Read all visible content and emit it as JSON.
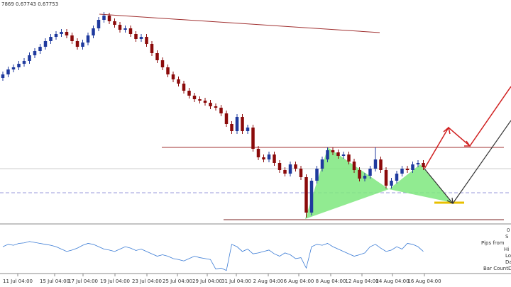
{
  "chart_data": {
    "type": "candlestick",
    "header": "7869 0.67743 0.67753",
    "ylim": [
      0.67,
      0.7015
    ],
    "bull_color": "#1f3a9e",
    "bear_color": "#8b0a0a",
    "open": [
      0.6905,
      0.691,
      0.6917,
      0.692,
      0.6925,
      0.6929,
      0.6937,
      0.6943,
      0.6949,
      0.6957,
      0.6963,
      0.6967,
      0.697,
      0.6965,
      0.6957,
      0.6949,
      0.6955,
      0.6965,
      0.6975,
      0.6987,
      0.6993,
      0.6985,
      0.698,
      0.6973,
      0.6975,
      0.6967,
      0.696,
      0.6963,
      0.6953,
      0.694,
      0.693,
      0.692,
      0.691,
      0.6903,
      0.6897,
      0.6887,
      0.688,
      0.6875,
      0.6873,
      0.687,
      0.6865,
      0.6863,
      0.6855,
      0.684,
      0.683,
      0.685,
      0.683,
      0.6835,
      0.6805,
      0.6793,
      0.679,
      0.6797,
      0.6785,
      0.6775,
      0.677,
      0.6783,
      0.6777,
      0.6765,
      0.6715,
      0.676,
      0.6777,
      0.679,
      0.6803,
      0.68,
      0.6795,
      0.6797,
      0.6787,
      0.6775,
      0.6763,
      0.6767,
      0.6777,
      0.679,
      0.6775,
      0.6753,
      0.676,
      0.677,
      0.6777,
      0.6775,
      0.6783,
      0.6785
    ],
    "high": [
      0.6914,
      0.6921,
      0.6924,
      0.6929,
      0.6933,
      0.6941,
      0.6947,
      0.6953,
      0.6961,
      0.6967,
      0.6971,
      0.6974,
      0.6974,
      0.6969,
      0.6961,
      0.6959,
      0.6969,
      0.6979,
      0.6991,
      0.6998,
      0.6997,
      0.6989,
      0.6984,
      0.6979,
      0.6979,
      0.6971,
      0.6967,
      0.6967,
      0.6957,
      0.6944,
      0.6934,
      0.6924,
      0.6914,
      0.6907,
      0.6901,
      0.6891,
      0.6884,
      0.6879,
      0.6877,
      0.6874,
      0.6869,
      0.6867,
      0.6859,
      0.6844,
      0.6854,
      0.6854,
      0.6839,
      0.6839,
      0.6809,
      0.6797,
      0.6801,
      0.6801,
      0.6789,
      0.6779,
      0.6787,
      0.6787,
      0.6781,
      0.6769,
      0.6764,
      0.6781,
      0.6794,
      0.6807,
      0.6807,
      0.6804,
      0.6801,
      0.6801,
      0.6791,
      0.6779,
      0.6771,
      0.6781,
      0.6807,
      0.6794,
      0.6779,
      0.6764,
      0.6774,
      0.6781,
      0.6781,
      0.6787,
      0.6789,
      0.6789
    ],
    "low": [
      0.6901,
      0.6906,
      0.6913,
      0.6916,
      0.6921,
      0.6925,
      0.6933,
      0.6939,
      0.6945,
      0.6953,
      0.6959,
      0.6963,
      0.6961,
      0.6953,
      0.6945,
      0.6945,
      0.6951,
      0.6961,
      0.6971,
      0.6983,
      0.6981,
      0.6976,
      0.6969,
      0.6969,
      0.6963,
      0.6956,
      0.6956,
      0.6949,
      0.6936,
      0.6926,
      0.6916,
      0.6906,
      0.6899,
      0.6893,
      0.6883,
      0.6876,
      0.6871,
      0.6869,
      0.6866,
      0.6861,
      0.6859,
      0.6851,
      0.6836,
      0.6826,
      0.6826,
      0.6826,
      0.6826,
      0.6801,
      0.6789,
      0.6786,
      0.6786,
      0.6781,
      0.6771,
      0.6766,
      0.6766,
      0.6773,
      0.6761,
      0.6708,
      0.6711,
      0.6756,
      0.6773,
      0.6786,
      0.6796,
      0.6791,
      0.6791,
      0.6783,
      0.6771,
      0.6759,
      0.6759,
      0.6763,
      0.6773,
      0.6771,
      0.6749,
      0.6749,
      0.6756,
      0.6766,
      0.6771,
      0.6771,
      0.6779,
      0.6775
    ],
    "close": [
      0.691,
      0.6917,
      0.692,
      0.6925,
      0.6929,
      0.6937,
      0.6943,
      0.6949,
      0.6957,
      0.6963,
      0.6967,
      0.697,
      0.6965,
      0.6957,
      0.6949,
      0.6955,
      0.6965,
      0.6975,
      0.6987,
      0.6993,
      0.6985,
      0.698,
      0.6973,
      0.6975,
      0.6967,
      0.696,
      0.6963,
      0.6953,
      0.694,
      0.693,
      0.692,
      0.691,
      0.6903,
      0.6897,
      0.6887,
      0.688,
      0.6875,
      0.6873,
      0.687,
      0.6865,
      0.6863,
      0.6855,
      0.684,
      0.683,
      0.685,
      0.683,
      0.6835,
      0.6805,
      0.6793,
      0.679,
      0.6797,
      0.6785,
      0.6775,
      0.677,
      0.6783,
      0.6777,
      0.6765,
      0.6715,
      0.676,
      0.6777,
      0.679,
      0.6803,
      0.68,
      0.6795,
      0.6797,
      0.6787,
      0.6775,
      0.6763,
      0.6767,
      0.6777,
      0.679,
      0.6775,
      0.6753,
      0.676,
      0.677,
      0.6777,
      0.6775,
      0.6783,
      0.6785,
      0.6779
    ],
    "indicator": {
      "color": "#3a7bd5",
      "ylim": [
        0,
        100
      ],
      "values": [
        55,
        60,
        58,
        62,
        63,
        66,
        64,
        62,
        60,
        58,
        55,
        50,
        45,
        48,
        52,
        58,
        62,
        60,
        55,
        50,
        48,
        45,
        50,
        55,
        52,
        47,
        50,
        45,
        40,
        35,
        38,
        35,
        30,
        28,
        25,
        30,
        35,
        32,
        30,
        28,
        8,
        10,
        5,
        60,
        55,
        45,
        50,
        40,
        42,
        45,
        48,
        40,
        35,
        42,
        38,
        30,
        32,
        10,
        55,
        60,
        58,
        62,
        55,
        50,
        45,
        40,
        35,
        38,
        42,
        55,
        60,
        52,
        45,
        48,
        55,
        50,
        62,
        60,
        55,
        45
      ]
    },
    "x_labels": [
      "11 Jul 04:00",
      "15 Jul 04:00",
      "17 Jul 04:00",
      "19 Jul 04:00",
      "23 Jul 04:00",
      "25 Jul 04:00",
      "29 Jul 04:00",
      "31 Jul 04:00",
      "2 Aug 04:00",
      "6 Aug 04:00",
      "8 Aug 04:00",
      "12 Aug 04:00",
      "14 Aug 04:00",
      "16 Aug 04:00"
    ]
  },
  "side_panel": [
    "0",
    "S",
    "Pips from",
    "Hi",
    "Lo",
    "Da",
    "Bar CountDo"
  ]
}
